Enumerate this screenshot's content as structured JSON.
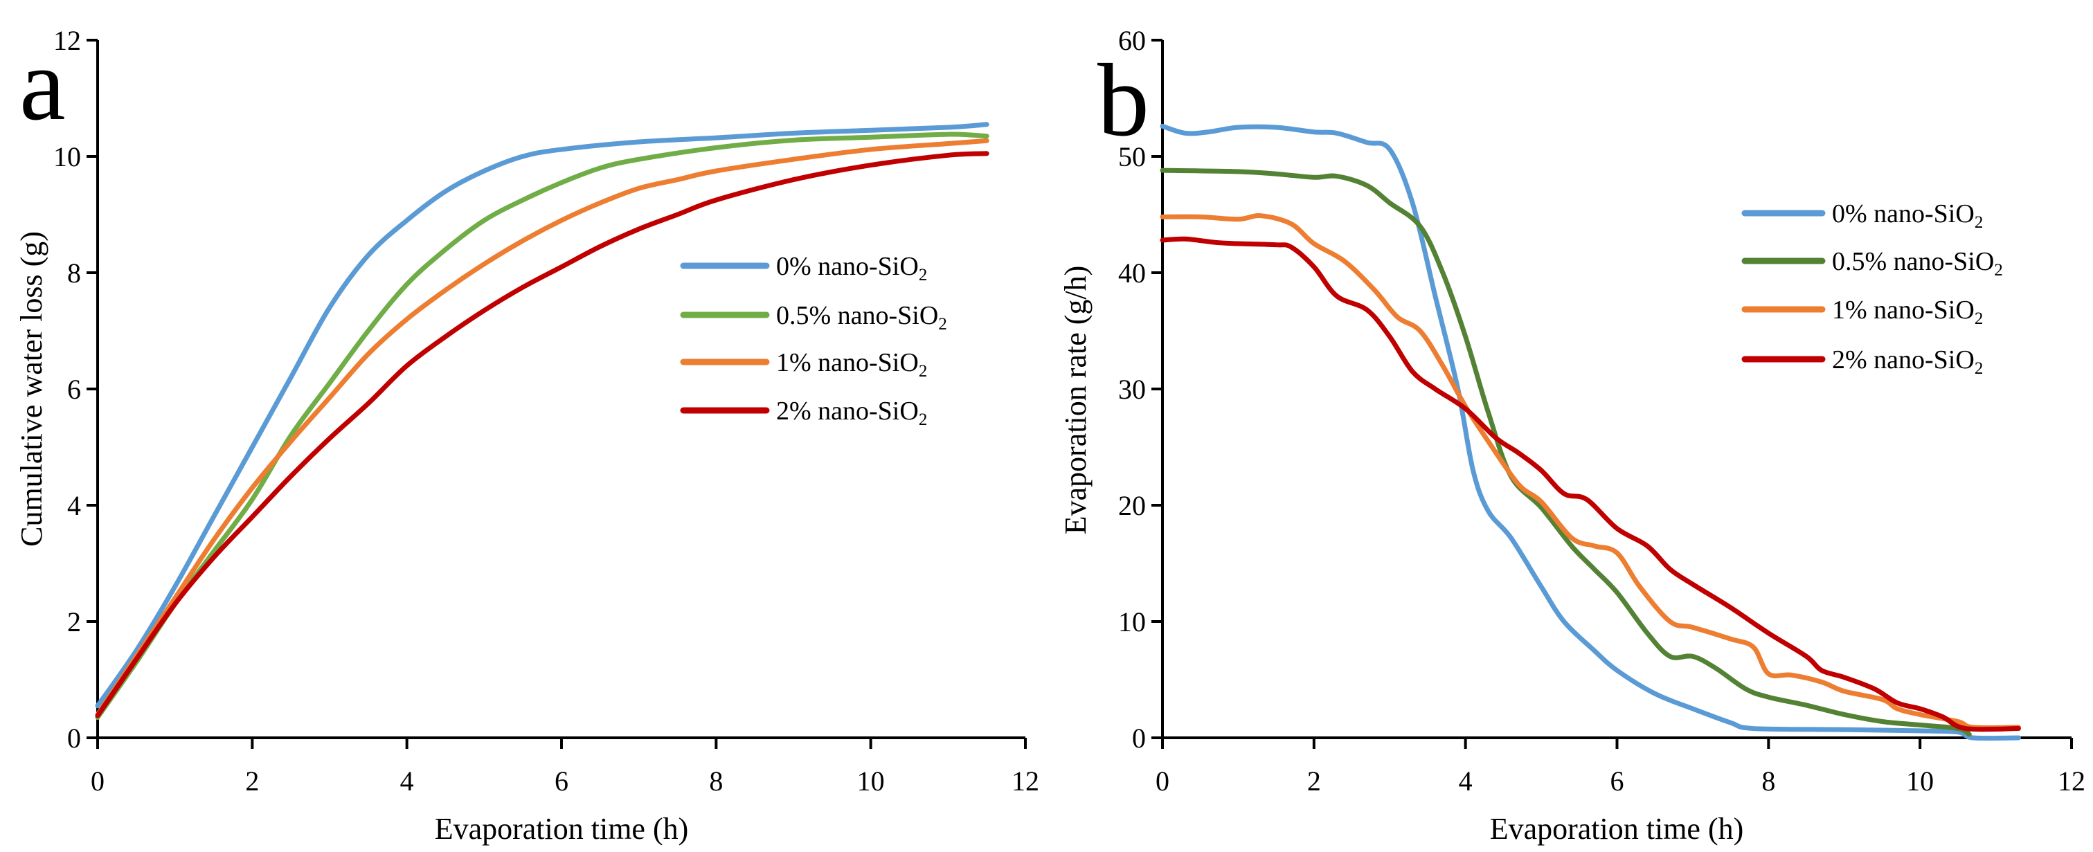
{
  "chart_data": [
    {
      "type": "line",
      "panel_label": "a",
      "xlabel": "Evaporation time (h)",
      "ylabel": "Cumulative water loss (g)",
      "xlim": [
        0,
        12
      ],
      "ylim": [
        0,
        12
      ],
      "xticks": [
        0,
        2,
        4,
        6,
        8,
        10,
        12
      ],
      "yticks": [
        0,
        2,
        4,
        6,
        8,
        10,
        12
      ],
      "grid": false,
      "legend_position": "center-right",
      "series": [
        {
          "name": "0% nano-SiO2",
          "label_main": "0%",
          "label_text": "nano-SiO",
          "label_sub": "2",
          "color": "#5b9bd5",
          "x": [
            0,
            0.5,
            1,
            1.5,
            2,
            2.5,
            3,
            3.5,
            4,
            4.5,
            5,
            5.5,
            6,
            7,
            8,
            9,
            10,
            11,
            11.5
          ],
          "y": [
            0.55,
            1.5,
            2.6,
            3.8,
            5.0,
            6.2,
            7.4,
            8.3,
            8.9,
            9.4,
            9.75,
            10.0,
            10.12,
            10.25,
            10.32,
            10.4,
            10.45,
            10.5,
            10.55
          ]
        },
        {
          "name": "0.5% nano-SiO2",
          "label_main": "0.5%",
          "label_text": "nano-SiO",
          "label_sub": "2",
          "color": "#70ad47",
          "x": [
            0,
            0.5,
            1,
            1.5,
            2,
            2.5,
            3,
            3.5,
            4,
            4.5,
            5,
            5.5,
            6,
            6.5,
            7,
            8,
            9,
            10,
            11,
            11.5
          ],
          "y": [
            0.35,
            1.3,
            2.3,
            3.2,
            4.1,
            5.2,
            6.1,
            7.0,
            7.8,
            8.4,
            8.9,
            9.25,
            9.55,
            9.8,
            9.95,
            10.15,
            10.28,
            10.33,
            10.38,
            10.35
          ]
        },
        {
          "name": "1% nano-SiO2",
          "label_main": "1%",
          "label_text": "nano-SiO",
          "label_sub": "2",
          "color": "#ed7d31",
          "x": [
            0,
            0.5,
            1,
            1.5,
            2,
            2.5,
            3,
            3.5,
            4,
            4.5,
            5,
            5.5,
            6,
            6.5,
            7,
            7.5,
            8,
            9,
            10,
            11,
            11.5
          ],
          "y": [
            0.4,
            1.4,
            2.4,
            3.4,
            4.3,
            5.1,
            5.85,
            6.6,
            7.2,
            7.7,
            8.15,
            8.55,
            8.9,
            9.2,
            9.45,
            9.6,
            9.75,
            9.95,
            10.12,
            10.22,
            10.27
          ]
        },
        {
          "name": "2% nano-SiO2",
          "label_main": "2%",
          "label_text": "nano-SiO",
          "label_sub": "2",
          "color": "#c00000",
          "x": [
            0,
            0.5,
            1,
            1.5,
            2,
            2.5,
            3,
            3.5,
            4,
            4.5,
            5,
            5.5,
            6,
            6.5,
            7,
            7.5,
            8,
            9,
            10,
            11,
            11.5
          ],
          "y": [
            0.38,
            1.35,
            2.3,
            3.1,
            3.8,
            4.5,
            5.15,
            5.75,
            6.4,
            6.9,
            7.35,
            7.75,
            8.1,
            8.45,
            8.75,
            9.0,
            9.25,
            9.6,
            9.85,
            10.02,
            10.05
          ]
        }
      ]
    },
    {
      "type": "line",
      "panel_label": "b",
      "xlabel": "Evaporation time (h)",
      "ylabel": "Evaporation rate (g/h)",
      "xlim": [
        0,
        12
      ],
      "ylim": [
        0,
        60
      ],
      "xticks": [
        0,
        2,
        4,
        6,
        8,
        10,
        12
      ],
      "yticks": [
        0,
        10,
        20,
        30,
        40,
        50,
        60
      ],
      "grid": false,
      "legend_position": "top-right",
      "series": [
        {
          "name": "0% nano-SiO2",
          "label_main": "0%",
          "label_text": "nano-SiO",
          "label_sub": "2",
          "color": "#5b9bd5",
          "x": [
            0,
            0.3,
            0.6,
            1,
            1.5,
            2,
            2.3,
            2.7,
            3,
            3.3,
            3.6,
            3.9,
            4.1,
            4.3,
            4.6,
            5,
            5.3,
            5.7,
            6,
            6.5,
            7,
            7.5,
            7.8,
            9,
            10,
            10.5,
            10.7,
            11.3
          ],
          "y": [
            52.6,
            52,
            52.1,
            52.5,
            52.5,
            52.1,
            52,
            51.2,
            50.6,
            46,
            38,
            30,
            23,
            19.5,
            17.2,
            13,
            10,
            7.5,
            5.8,
            3.8,
            2.5,
            1.3,
            0.8,
            0.7,
            0.6,
            0.5,
            0,
            0
          ]
        },
        {
          "name": "0.5% nano-SiO2",
          "label_main": "0.5%",
          "label_text": "nano-SiO",
          "label_sub": "2",
          "color": "#548235",
          "x": [
            0,
            1,
            1.5,
            2,
            2.3,
            2.7,
            3,
            3.4,
            3.7,
            4,
            4.3,
            4.6,
            5,
            5.4,
            5.7,
            6,
            6.4,
            6.7,
            7,
            7.3,
            7.7,
            8,
            8.5,
            9,
            9.5,
            10,
            10.5,
            10.65
          ],
          "y": [
            48.8,
            48.7,
            48.5,
            48.2,
            48.3,
            47.5,
            46,
            44,
            40,
            34.5,
            28,
            22.5,
            19.8,
            16.5,
            14.5,
            12.5,
            9,
            7,
            7,
            6,
            4.2,
            3.5,
            2.8,
            2,
            1.4,
            1.1,
            0.8,
            0.3
          ]
        },
        {
          "name": "1% nano-SiO2",
          "label_main": "1%",
          "label_text": "nano-SiO",
          "label_sub": "2",
          "color": "#ed7d31",
          "x": [
            0,
            0.5,
            1,
            1.3,
            1.7,
            2,
            2.4,
            2.8,
            3.1,
            3.4,
            3.7,
            4,
            4.3,
            4.7,
            5,
            5.4,
            5.7,
            6,
            6.3,
            6.7,
            7,
            7.5,
            7.8,
            8,
            8.3,
            8.7,
            9,
            9.5,
            9.7,
            10,
            10.5,
            10.7,
            11.3
          ],
          "y": [
            44.8,
            44.8,
            44.6,
            44.9,
            44.2,
            42.5,
            41,
            38.5,
            36.2,
            35,
            32,
            28.5,
            25.5,
            21.8,
            20.3,
            17.2,
            16.5,
            15.9,
            13,
            10,
            9.5,
            8.5,
            7.8,
            5.5,
            5.4,
            4.8,
            4,
            3.3,
            2.5,
            2,
            1.4,
            0.9,
            0.9
          ]
        },
        {
          "name": "2% nano-SiO2",
          "label_main": "2%",
          "label_text": "nano-SiO",
          "label_sub": "2",
          "color": "#c00000",
          "x": [
            0,
            0.3,
            0.7,
            1,
            1.5,
            1.7,
            2,
            2.3,
            2.7,
            3,
            3.3,
            3.6,
            4,
            4.4,
            4.7,
            5,
            5.3,
            5.6,
            6,
            6.4,
            6.7,
            7,
            7.5,
            8,
            8.5,
            8.7,
            9,
            9.4,
            9.7,
            10,
            10.3,
            10.6,
            11.3
          ],
          "y": [
            42.8,
            42.9,
            42.6,
            42.5,
            42.4,
            42.2,
            40.5,
            38,
            36.8,
            34.5,
            31.5,
            30,
            28.3,
            25.8,
            24.5,
            23,
            21,
            20.5,
            18,
            16.5,
            14.5,
            13.2,
            11.2,
            9,
            7,
            5.8,
            5.2,
            4.2,
            3,
            2.5,
            1.8,
            0.8,
            0.8
          ]
        }
      ]
    }
  ]
}
